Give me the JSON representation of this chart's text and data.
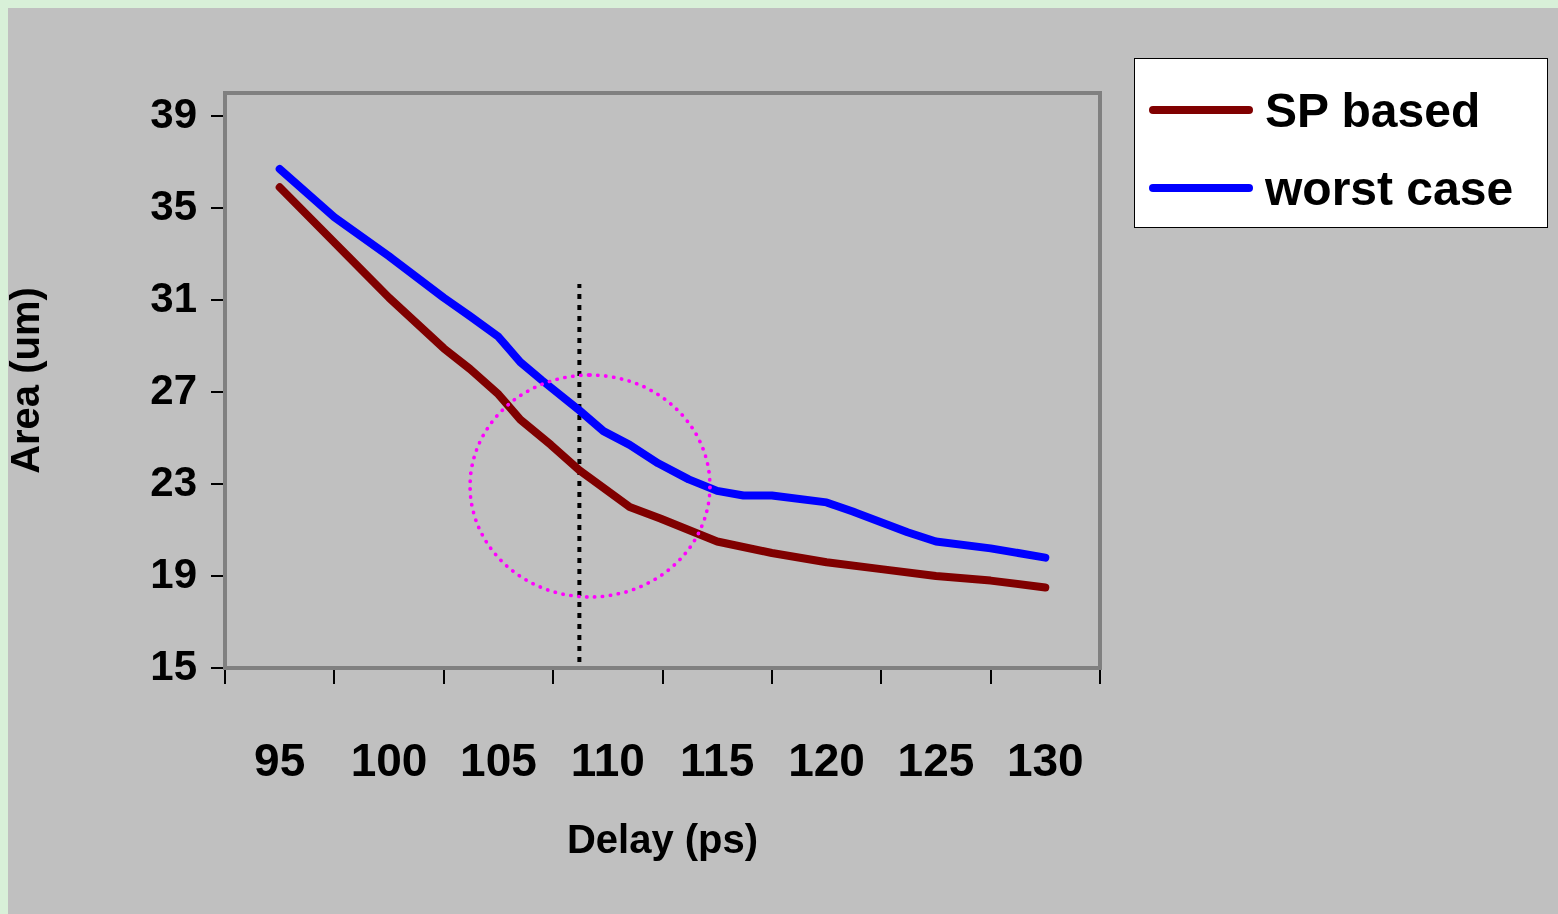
{
  "chart_data": {
    "type": "line",
    "xlabel": "Delay (ps)",
    "ylabel": "Area (um)",
    "xlim": [
      92.5,
      132.5
    ],
    "xticks": [
      {
        "value": 92.5,
        "label": null
      },
      95,
      {
        "value": 97.5,
        "label": null
      },
      100,
      {
        "value": 102.5,
        "label": null
      },
      105,
      {
        "value": 107.5,
        "label": null
      },
      110,
      {
        "value": 112.5,
        "label": null
      },
      115,
      {
        "value": 117.5,
        "label": null
      },
      120,
      {
        "value": 122.5,
        "label": null
      },
      125,
      {
        "value": 127.5,
        "label": null
      },
      130,
      {
        "value": 132.5,
        "label": null
      }
    ],
    "ylim": [
      15,
      40
    ],
    "yticks": [
      15,
      19,
      23,
      27,
      31,
      35,
      39
    ],
    "legend": "top right",
    "marker": "none",
    "line_style": "solid",
    "series": [
      {
        "name": "SP based",
        "color": "#800000",
        "x": [
          95,
          97.5,
          100,
          102.5,
          103.7,
          105,
          106,
          107.4,
          108.7,
          110,
          111,
          112.4,
          115,
          117.5,
          120,
          122.5,
          125,
          127.5,
          130
        ],
        "values": [
          35.9,
          33.5,
          31.1,
          28.9,
          28.0,
          26.9,
          25.8,
          24.7,
          23.6,
          22.7,
          22.0,
          21.5,
          20.5,
          20.0,
          19.6,
          19.3,
          19.0,
          18.8,
          18.5
        ]
      },
      {
        "name": "worst case",
        "color": "#0000ff",
        "x": [
          95,
          97.5,
          100,
          102.5,
          103.7,
          105,
          106,
          107,
          108.7,
          109.8,
          111,
          112.3,
          113.7,
          115,
          116.2,
          117.5,
          120,
          121.2,
          123.7,
          125,
          127.5,
          130
        ],
        "values": [
          36.7,
          34.6,
          32.9,
          31.1,
          30.3,
          29.4,
          28.3,
          27.5,
          26.2,
          25.3,
          24.7,
          23.9,
          23.2,
          22.7,
          22.5,
          22.5,
          22.2,
          21.8,
          20.9,
          20.5,
          20.2,
          19.8
        ]
      },
      {
        "color": "#000000",
        "line_style": "dotted",
        "x": [
          108.7,
          108.7
        ],
        "values": [
          15,
          31.7
        ]
      }
    ]
  }
}
